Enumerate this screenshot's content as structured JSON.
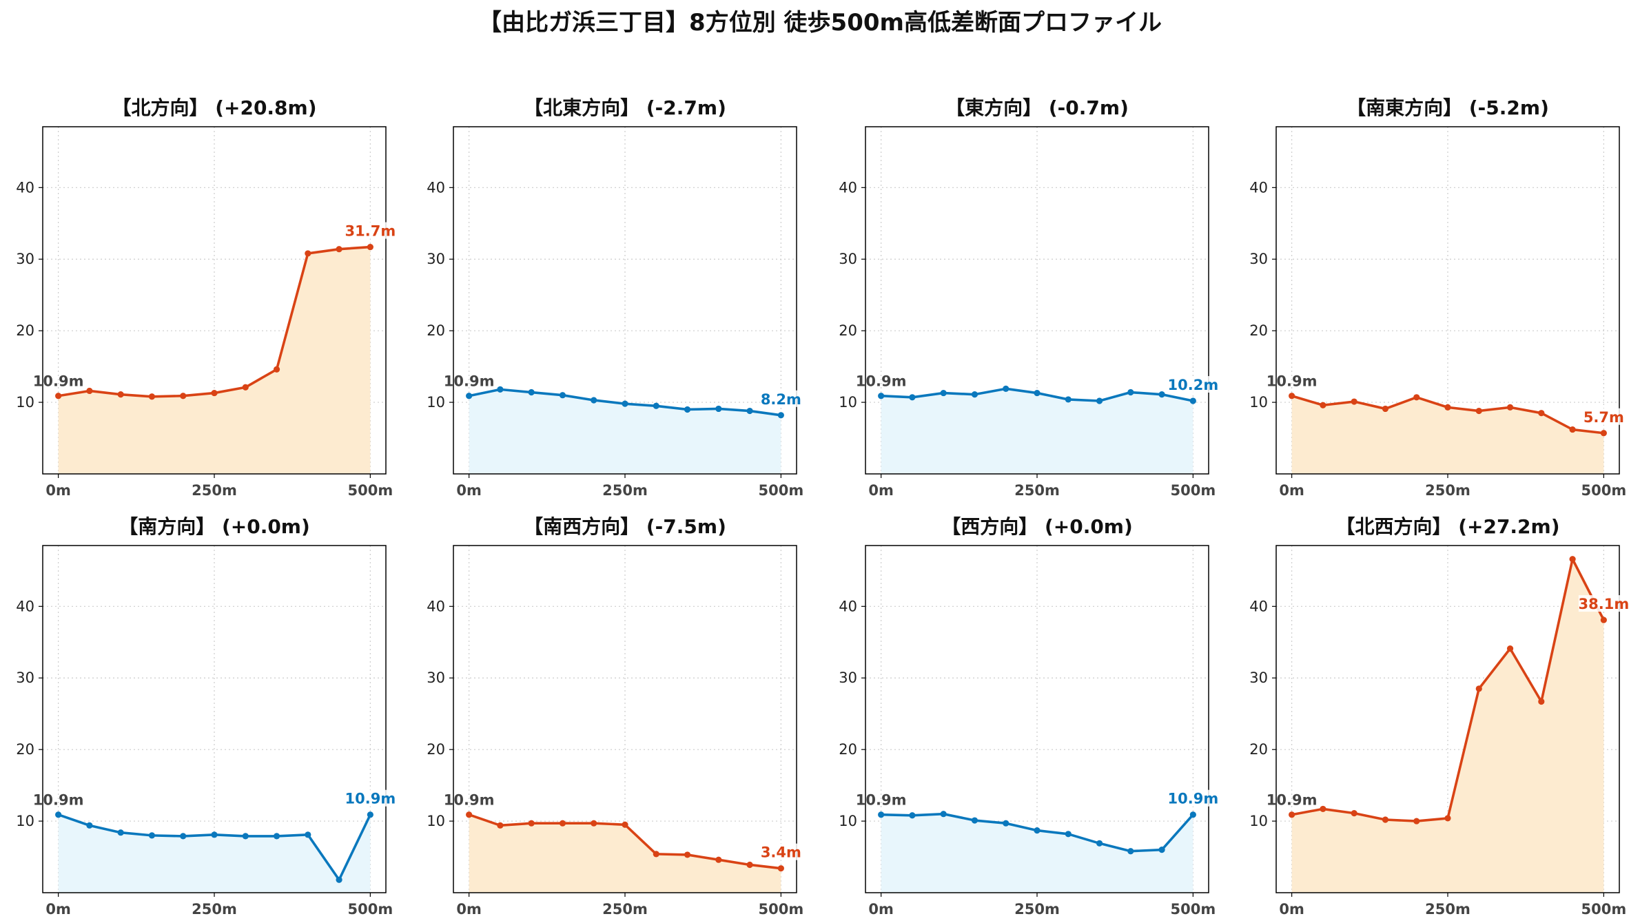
{
  "title": "【由比ガ浜三丁目】8方位別 徒歩500m高低差断面プロファイル",
  "colors": {
    "up_line": "#d94315",
    "up_fill": "#fdebd0",
    "down_line": "#0a78bd",
    "down_fill": "#e8f6fc",
    "start_label": "#444444"
  },
  "chart_data": [
    {
      "type": "area",
      "title": "【北方向】 (+20.8m)",
      "trend": "up",
      "x": [
        0,
        50,
        100,
        150,
        200,
        250,
        300,
        350,
        400,
        450,
        500
      ],
      "xticks": [
        0,
        250,
        500
      ],
      "xtick_labels": [
        "0m",
        "250m",
        "500m"
      ],
      "y": [
        10.9,
        11.6,
        11.1,
        10.8,
        10.9,
        11.3,
        12.1,
        14.6,
        30.8,
        31.4,
        31.7
      ],
      "yticks": [
        10,
        20,
        30,
        40
      ],
      "ylim": [
        0,
        48.5
      ],
      "xlim": [
        -25,
        525
      ],
      "start_label": "10.9m",
      "end_label": "31.7m",
      "grid": true
    },
    {
      "type": "area",
      "title": "【北東方向】 (-2.7m)",
      "trend": "down",
      "x": [
        0,
        50,
        100,
        150,
        200,
        250,
        300,
        350,
        400,
        450,
        500
      ],
      "xticks": [
        0,
        250,
        500
      ],
      "xtick_labels": [
        "0m",
        "250m",
        "500m"
      ],
      "y": [
        10.9,
        11.8,
        11.4,
        11.0,
        10.3,
        9.8,
        9.5,
        9.0,
        9.1,
        8.8,
        8.2
      ],
      "yticks": [
        10,
        20,
        30,
        40
      ],
      "ylim": [
        0,
        48.5
      ],
      "xlim": [
        -25,
        525
      ],
      "start_label": "10.9m",
      "end_label": "8.2m",
      "grid": true
    },
    {
      "type": "area",
      "title": "【東方向】 (-0.7m)",
      "trend": "down",
      "x": [
        0,
        50,
        100,
        150,
        200,
        250,
        300,
        350,
        400,
        450,
        500
      ],
      "xticks": [
        0,
        250,
        500
      ],
      "xtick_labels": [
        "0m",
        "250m",
        "500m"
      ],
      "y": [
        10.9,
        10.7,
        11.3,
        11.1,
        11.9,
        11.3,
        10.4,
        10.2,
        11.4,
        11.1,
        10.2
      ],
      "yticks": [
        10,
        20,
        30,
        40
      ],
      "ylim": [
        0,
        48.5
      ],
      "xlim": [
        -25,
        525
      ],
      "start_label": "10.9m",
      "end_label": "10.2m",
      "grid": true
    },
    {
      "type": "area",
      "title": "【南東方向】 (-5.2m)",
      "trend": "up",
      "x": [
        0,
        50,
        100,
        150,
        200,
        250,
        300,
        350,
        400,
        450,
        500
      ],
      "xticks": [
        0,
        250,
        500
      ],
      "xtick_labels": [
        "0m",
        "250m",
        "500m"
      ],
      "y": [
        10.9,
        9.6,
        10.1,
        9.1,
        10.7,
        9.3,
        8.8,
        9.3,
        8.5,
        6.2,
        5.7
      ],
      "yticks": [
        10,
        20,
        30,
        40
      ],
      "ylim": [
        0,
        48.5
      ],
      "xlim": [
        -25,
        525
      ],
      "start_label": "10.9m",
      "end_label": "5.7m",
      "grid": true
    },
    {
      "type": "area",
      "title": "【南方向】 (+0.0m)",
      "trend": "down",
      "x": [
        0,
        50,
        100,
        150,
        200,
        250,
        300,
        350,
        400,
        450,
        500
      ],
      "xticks": [
        0,
        250,
        500
      ],
      "xtick_labels": [
        "0m",
        "250m",
        "500m"
      ],
      "y": [
        10.9,
        9.4,
        8.4,
        8.0,
        7.9,
        8.1,
        7.9,
        7.9,
        8.1,
        1.8,
        10.9
      ],
      "yticks": [
        10,
        20,
        30,
        40
      ],
      "ylim": [
        0,
        48.5
      ],
      "xlim": [
        -25,
        525
      ],
      "start_label": "10.9m",
      "end_label": "10.9m",
      "grid": true
    },
    {
      "type": "area",
      "title": "【南西方向】 (-7.5m)",
      "trend": "up",
      "x": [
        0,
        50,
        100,
        150,
        200,
        250,
        300,
        350,
        400,
        450,
        500
      ],
      "xticks": [
        0,
        250,
        500
      ],
      "xtick_labels": [
        "0m",
        "250m",
        "500m"
      ],
      "y": [
        10.9,
        9.4,
        9.7,
        9.7,
        9.7,
        9.5,
        5.4,
        5.3,
        4.6,
        3.9,
        3.4
      ],
      "yticks": [
        10,
        20,
        30,
        40
      ],
      "ylim": [
        0,
        48.5
      ],
      "xlim": [
        -25,
        525
      ],
      "start_label": "10.9m",
      "end_label": "3.4m",
      "grid": true
    },
    {
      "type": "area",
      "title": "【西方向】 (+0.0m)",
      "trend": "down",
      "x": [
        0,
        50,
        100,
        150,
        200,
        250,
        300,
        350,
        400,
        450,
        500
      ],
      "xticks": [
        0,
        250,
        500
      ],
      "xtick_labels": [
        "0m",
        "250m",
        "500m"
      ],
      "y": [
        10.9,
        10.8,
        11.0,
        10.1,
        9.7,
        8.7,
        8.2,
        6.9,
        5.8,
        6.0,
        10.9
      ],
      "yticks": [
        10,
        20,
        30,
        40
      ],
      "ylim": [
        0,
        48.5
      ],
      "xlim": [
        -25,
        525
      ],
      "start_label": "10.9m",
      "end_label": "10.9m",
      "grid": true
    },
    {
      "type": "area",
      "title": "【北西方向】 (+27.2m)",
      "trend": "up",
      "x": [
        0,
        50,
        100,
        150,
        200,
        250,
        300,
        350,
        400,
        450,
        500
      ],
      "xticks": [
        0,
        250,
        500
      ],
      "xtick_labels": [
        "0m",
        "250m",
        "500m"
      ],
      "y": [
        10.9,
        11.7,
        11.1,
        10.2,
        10.0,
        10.4,
        28.5,
        34.1,
        26.7,
        46.6,
        38.1
      ],
      "yticks": [
        10,
        20,
        30,
        40
      ],
      "ylim": [
        0,
        48.5
      ],
      "xlim": [
        -25,
        525
      ],
      "start_label": "10.9m",
      "end_label": "38.1m",
      "grid": true
    }
  ]
}
